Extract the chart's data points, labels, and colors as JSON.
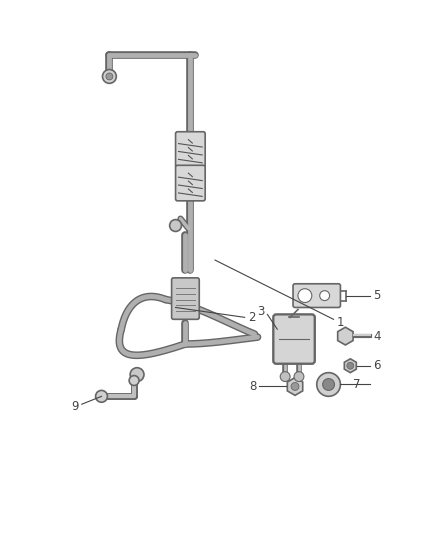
{
  "bg_color": "#ffffff",
  "line_color": "#666666",
  "fig_width": 4.38,
  "fig_height": 5.33,
  "dpi": 100,
  "label_fontsize": 8.5,
  "label_color": "#444444",
  "lw_tube": 3.5,
  "lw_edge": 1.2
}
